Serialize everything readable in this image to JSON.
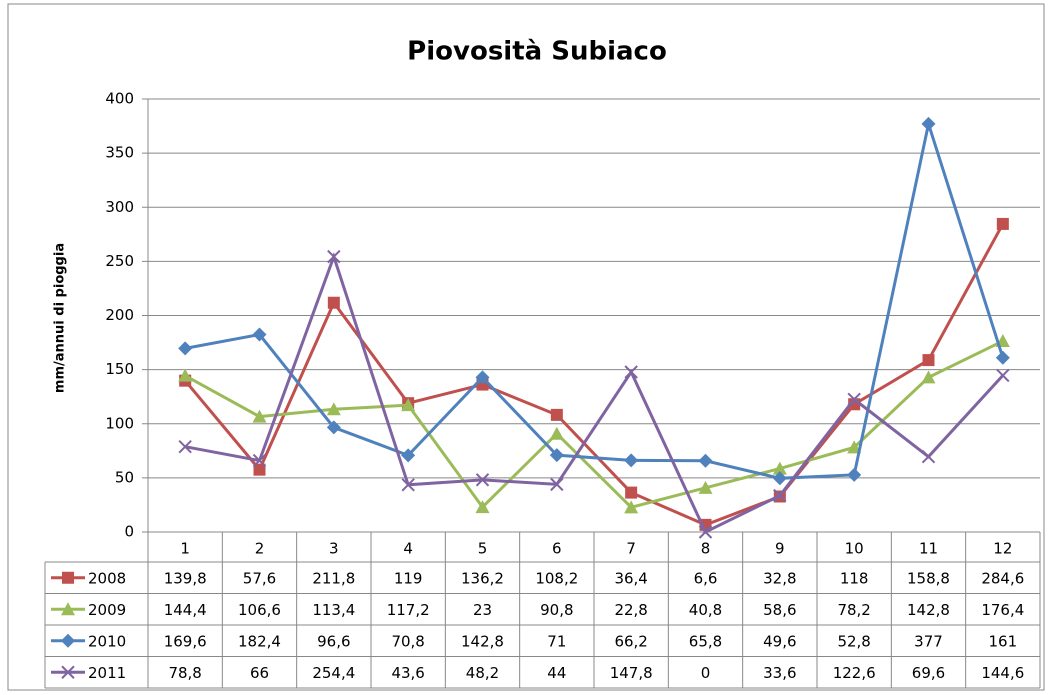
{
  "chart_data": {
    "type": "line",
    "title": "Piovosità Subiaco",
    "y_label": "mm/annui di pioggia",
    "categories": [
      "1",
      "2",
      "3",
      "4",
      "5",
      "6",
      "7",
      "8",
      "9",
      "10",
      "11",
      "12"
    ],
    "series": [
      {
        "name": "2008",
        "color": "#c0504d",
        "marker": "square",
        "values": [
          139.8,
          57.6,
          211.8,
          119,
          136.2,
          108.2,
          36.4,
          6.6,
          32.8,
          118,
          158.8,
          284.6
        ],
        "value_labels": [
          "139,8",
          "57,6",
          "211,8",
          "119",
          "136,2",
          "108,2",
          "36,4",
          "6,6",
          "32,8",
          "118",
          "158,8",
          "284,6"
        ]
      },
      {
        "name": "2009",
        "color": "#9bbb59",
        "marker": "triangle",
        "values": [
          144.4,
          106.6,
          113.4,
          117.2,
          23,
          90.8,
          22.8,
          40.8,
          58.6,
          78.2,
          142.8,
          176.4
        ],
        "value_labels": [
          "144,4",
          "106,6",
          "113,4",
          "117,2",
          "23",
          "90,8",
          "22,8",
          "40,8",
          "58,6",
          "78,2",
          "142,8",
          "176,4"
        ]
      },
      {
        "name": "2010",
        "color": "#4f81bd",
        "marker": "diamond",
        "values": [
          169.6,
          182.4,
          96.6,
          70.8,
          142.8,
          71,
          66.2,
          65.8,
          49.6,
          52.8,
          377,
          161
        ],
        "value_labels": [
          "169,6",
          "182,4",
          "96,6",
          "70,8",
          "142,8",
          "71",
          "66,2",
          "65,8",
          "49,6",
          "52,8",
          "377",
          "161"
        ]
      },
      {
        "name": "2011",
        "color": "#8064a2",
        "marker": "x",
        "values": [
          78.8,
          66,
          254.4,
          43.6,
          48.2,
          44,
          147.8,
          0,
          33.6,
          122.6,
          69.6,
          144.6
        ],
        "value_labels": [
          "78,8",
          "66",
          "254,4",
          "43,6",
          "48,2",
          "44",
          "147,8",
          "0",
          "33,6",
          "122,6",
          "69,6",
          "144,6"
        ]
      }
    ],
    "ylim": [
      0,
      400
    ],
    "yticks": [
      0,
      50,
      100,
      150,
      200,
      250,
      300,
      350,
      400
    ],
    "grid": true
  }
}
